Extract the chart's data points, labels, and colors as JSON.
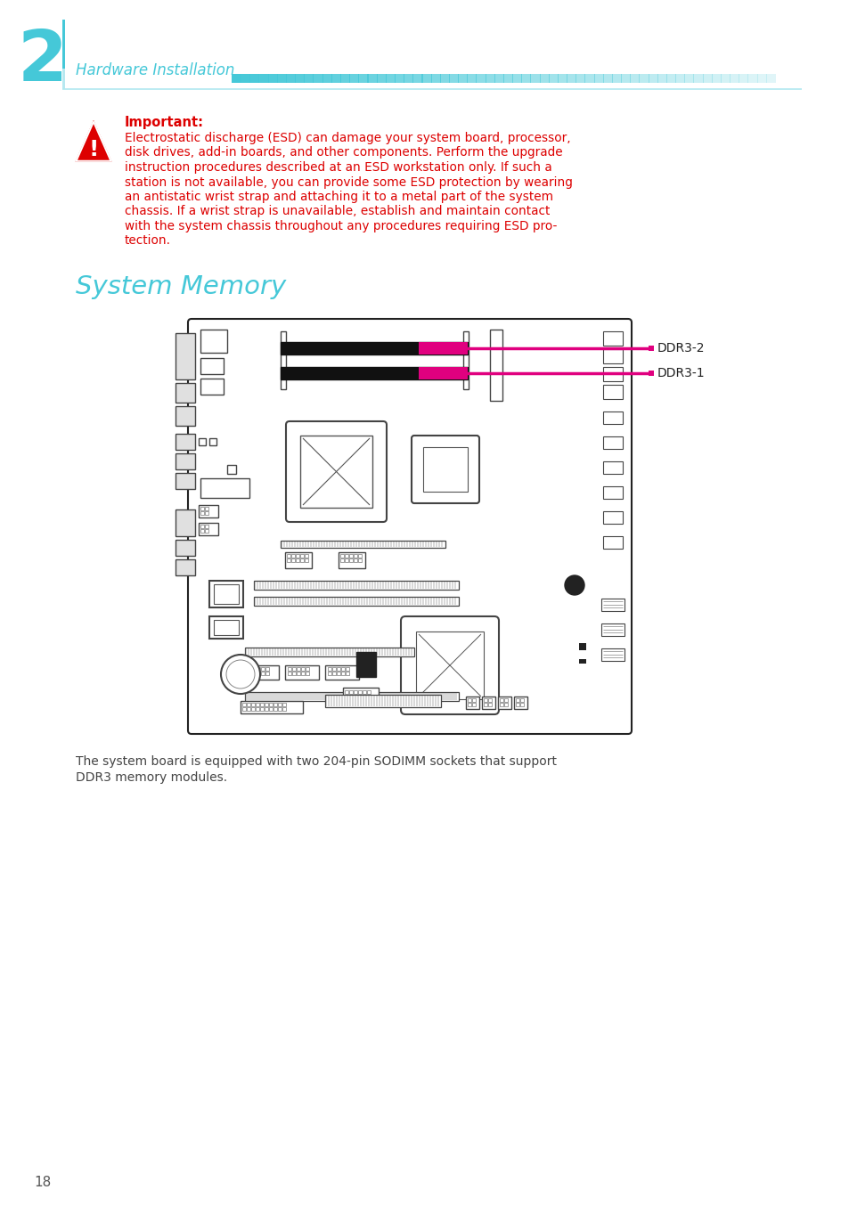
{
  "bg_color": "#ffffff",
  "page_number": "18",
  "chapter_number": "2",
  "chapter_title": "Hardware Installation",
  "chapter_color": "#45c8d8",
  "section_title": "System Memory",
  "section_color": "#45c8d8",
  "important_label": "Important:",
  "important_color": "#dd0000",
  "warning_lines": [
    "Electrostatic discharge (ESD) can damage your system board, processor,",
    "disk drives, add-in boards, and other components. Perform the upgrade",
    "instruction procedures described at an ESD workstation only. If such a",
    "station is not available, you can provide some ESD protection by wearing",
    "an antistatic wrist strap and attaching it to a metal part of the system",
    "chassis. If a wrist strap is unavailable, establish and maintain contact",
    "with the system chassis throughout any procedures requiring ESD pro-",
    "tection."
  ],
  "body_text_lines": [
    "The system board is equipped with two 204-pin SODIMM sockets that support",
    "DDR3 memory modules."
  ],
  "ddr3_2_label": "DDR3-2",
  "ddr3_1_label": "DDR3-1",
  "arrow_color": "#e0007f",
  "text_color": "#444444",
  "board_color": "#222222",
  "line_color": "#45c8d8"
}
